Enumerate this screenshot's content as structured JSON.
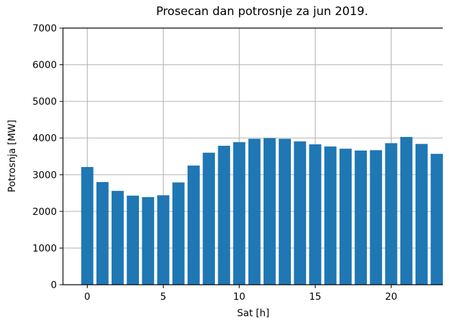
{
  "chart_data": {
    "type": "bar",
    "title": "Prosecan dan potrosnje za jun 2019.",
    "xlabel": "Sat [h]",
    "ylabel": "Potrosnja [MW]",
    "x": [
      0,
      1,
      2,
      3,
      4,
      5,
      6,
      7,
      8,
      9,
      10,
      11,
      12,
      13,
      14,
      15,
      16,
      17,
      18,
      19,
      20,
      21,
      22,
      23
    ],
    "values": [
      3210,
      2800,
      2560,
      2430,
      2390,
      2440,
      2790,
      3250,
      3600,
      3790,
      3890,
      3980,
      4000,
      3980,
      3910,
      3830,
      3770,
      3710,
      3660,
      3670,
      3860,
      4030,
      3840,
      3570
    ],
    "color": "#1f77b4",
    "xlim": [
      -1.6,
      23.4
    ],
    "xticks": [
      0,
      5,
      10,
      15,
      20
    ],
    "ylim": [
      0,
      7000
    ],
    "yticks": [
      0,
      1000,
      2000,
      3000,
      4000,
      5000,
      6000,
      7000
    ],
    "grid": true
  }
}
